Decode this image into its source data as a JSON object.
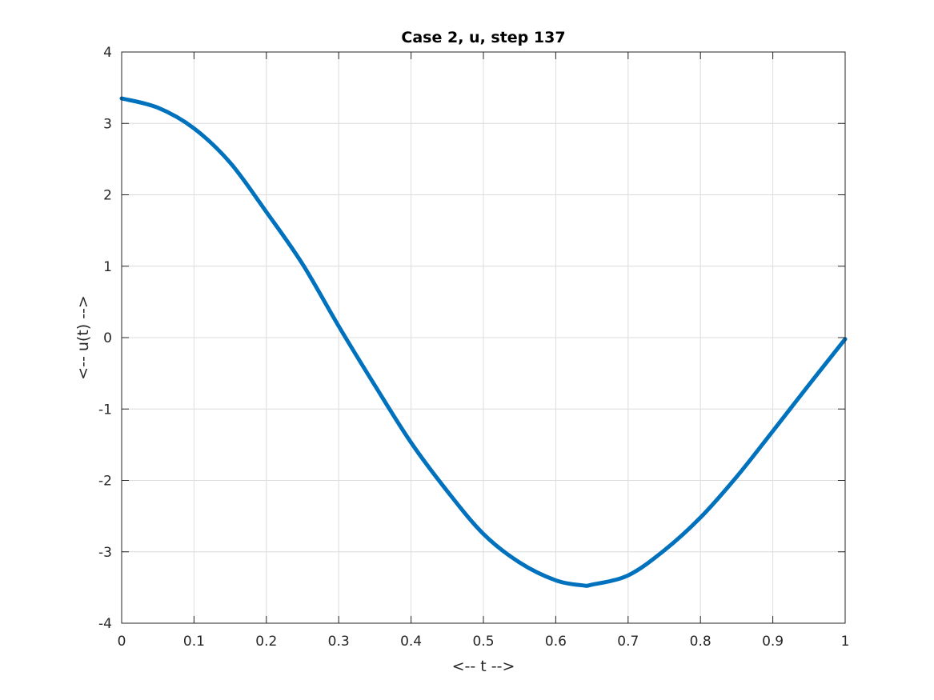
{
  "chart_data": {
    "type": "line",
    "title": "Case 2, u, step 137",
    "xlabel": "<-- t -->",
    "ylabel": "<-- u(t) -->",
    "xlim": [
      0,
      1
    ],
    "ylim": [
      -4,
      4
    ],
    "xticks": [
      "0",
      "0.1",
      "0.2",
      "0.3",
      "0.4",
      "0.5",
      "0.6",
      "0.7",
      "0.8",
      "0.9",
      "1"
    ],
    "yticks": [
      "-4",
      "-3",
      "-2",
      "-1",
      "0",
      "1",
      "2",
      "3",
      "4"
    ],
    "grid": true,
    "line_color": "#0072BD",
    "series": [
      {
        "x": [
          0,
          0.05,
          0.1,
          0.15,
          0.2,
          0.25,
          0.3,
          0.35,
          0.4,
          0.45,
          0.5,
          0.55,
          0.6,
          0.637,
          0.65,
          0.7,
          0.75,
          0.8,
          0.85,
          0.9,
          0.95,
          1.0
        ],
        "y": [
          3.35,
          3.22,
          2.93,
          2.45,
          1.76,
          1.03,
          0.16,
          -0.67,
          -1.47,
          -2.15,
          -2.75,
          -3.15,
          -3.4,
          -3.47,
          -3.46,
          -3.33,
          -2.98,
          -2.52,
          -1.95,
          -1.31,
          -0.66,
          -0.02
        ]
      }
    ]
  }
}
